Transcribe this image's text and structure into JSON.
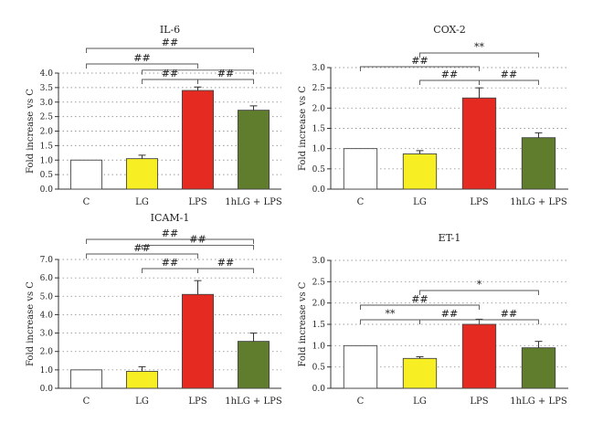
{
  "chart_data": [
    {
      "type": "bar",
      "title": "IL-6",
      "ylabel": "Fold increase vs C",
      "ylim": [
        0,
        4.0
      ],
      "ytick_step": 0.5,
      "ytick_decimals": 1,
      "categories": [
        "C",
        "LG",
        "LPS",
        "1hLG + LPS"
      ],
      "values": [
        1.0,
        1.05,
        3.4,
        2.72
      ],
      "errors": [
        0.0,
        0.12,
        0.12,
        0.15
      ],
      "colors": [
        "#ffffff",
        "#f7ef24",
        "#e52a22",
        "#5f7d2c"
      ],
      "grid": "dotted horizontal",
      "annotations": [
        {
          "from": 0,
          "to": 3,
          "level": 3,
          "label": "##"
        },
        {
          "from": 0,
          "to": 2,
          "level": 2,
          "label": "##"
        },
        {
          "from": 1,
          "to": 3,
          "level": 1.6,
          "label": ""
        },
        {
          "from": 1,
          "to": 2,
          "level": 1,
          "label": "##"
        },
        {
          "from": 2,
          "to": 3,
          "level": 1,
          "label": "##"
        }
      ]
    },
    {
      "type": "bar",
      "title": "COX-2",
      "ylabel": "Fold increase vs C",
      "ylim": [
        0,
        3.0
      ],
      "ytick_step": 0.5,
      "ytick_decimals": 1,
      "categories": [
        "C",
        "LG",
        "LPS",
        "1hLG + LPS"
      ],
      "values": [
        1.0,
        0.87,
        2.25,
        1.27
      ],
      "errors": [
        0.0,
        0.08,
        0.25,
        0.12
      ],
      "colors": [
        "#ffffff",
        "#f7ef24",
        "#e52a22",
        "#5f7d2c"
      ],
      "grid": "dotted horizontal",
      "annotations": [
        {
          "from": 0,
          "to": 2,
          "level": 2,
          "label": "##"
        },
        {
          "from": 1,
          "to": 3,
          "level": 3,
          "label": "**"
        },
        {
          "from": 1,
          "to": 2,
          "level": 1,
          "label": "##"
        },
        {
          "from": 2,
          "to": 3,
          "level": 1,
          "label": "##"
        }
      ]
    },
    {
      "type": "bar",
      "title": "ICAM-1",
      "ylabel": "Fold increase vs C",
      "ylim": [
        0,
        7.0
      ],
      "ytick_step": 1,
      "ytick_decimals": 1,
      "categories": [
        "C",
        "LG",
        "LPS",
        "1hLG + LPS"
      ],
      "values": [
        1.0,
        0.92,
        5.1,
        2.55
      ],
      "errors": [
        0.0,
        0.25,
        0.75,
        0.45
      ],
      "colors": [
        "#ffffff",
        "#f7ef24",
        "#e52a22",
        "#5f7d2c"
      ],
      "grid": "dotted horizontal",
      "annotations": [
        {
          "from": 0,
          "to": 3,
          "level": 3,
          "label": "##"
        },
        {
          "from": 0,
          "to": 2,
          "level": 2,
          "label": "##"
        },
        {
          "from": 1,
          "to": 3,
          "level": 2.6,
          "label": "##"
        },
        {
          "from": 1,
          "to": 2,
          "level": 1,
          "label": "##"
        },
        {
          "from": 2,
          "to": 3,
          "level": 1,
          "label": "##"
        }
      ]
    },
    {
      "type": "bar",
      "title": "ET-1",
      "ylabel": "Fold increase vs C",
      "ylim": [
        0,
        3.0
      ],
      "ytick_step": 0.5,
      "ytick_decimals": 1,
      "categories": [
        "C",
        "LG",
        "LPS",
        "1hLG + LPS"
      ],
      "values": [
        1.0,
        0.7,
        1.5,
        0.95
      ],
      "errors": [
        0.0,
        0.04,
        0.12,
        0.15
      ],
      "colors": [
        "#ffffff",
        "#f7ef24",
        "#e52a22",
        "#5f7d2c"
      ],
      "grid": "dotted horizontal",
      "annotations": [
        {
          "from": 1,
          "to": 3,
          "level": 3,
          "label": "*"
        },
        {
          "from": 0,
          "to": 2,
          "level": 2,
          "label": "##"
        },
        {
          "from": 0,
          "to": 1,
          "level": 1,
          "label": "**"
        },
        {
          "from": 1,
          "to": 2,
          "level": 1,
          "label": "##"
        },
        {
          "from": 2,
          "to": 3,
          "level": 1,
          "label": "##"
        }
      ]
    }
  ]
}
